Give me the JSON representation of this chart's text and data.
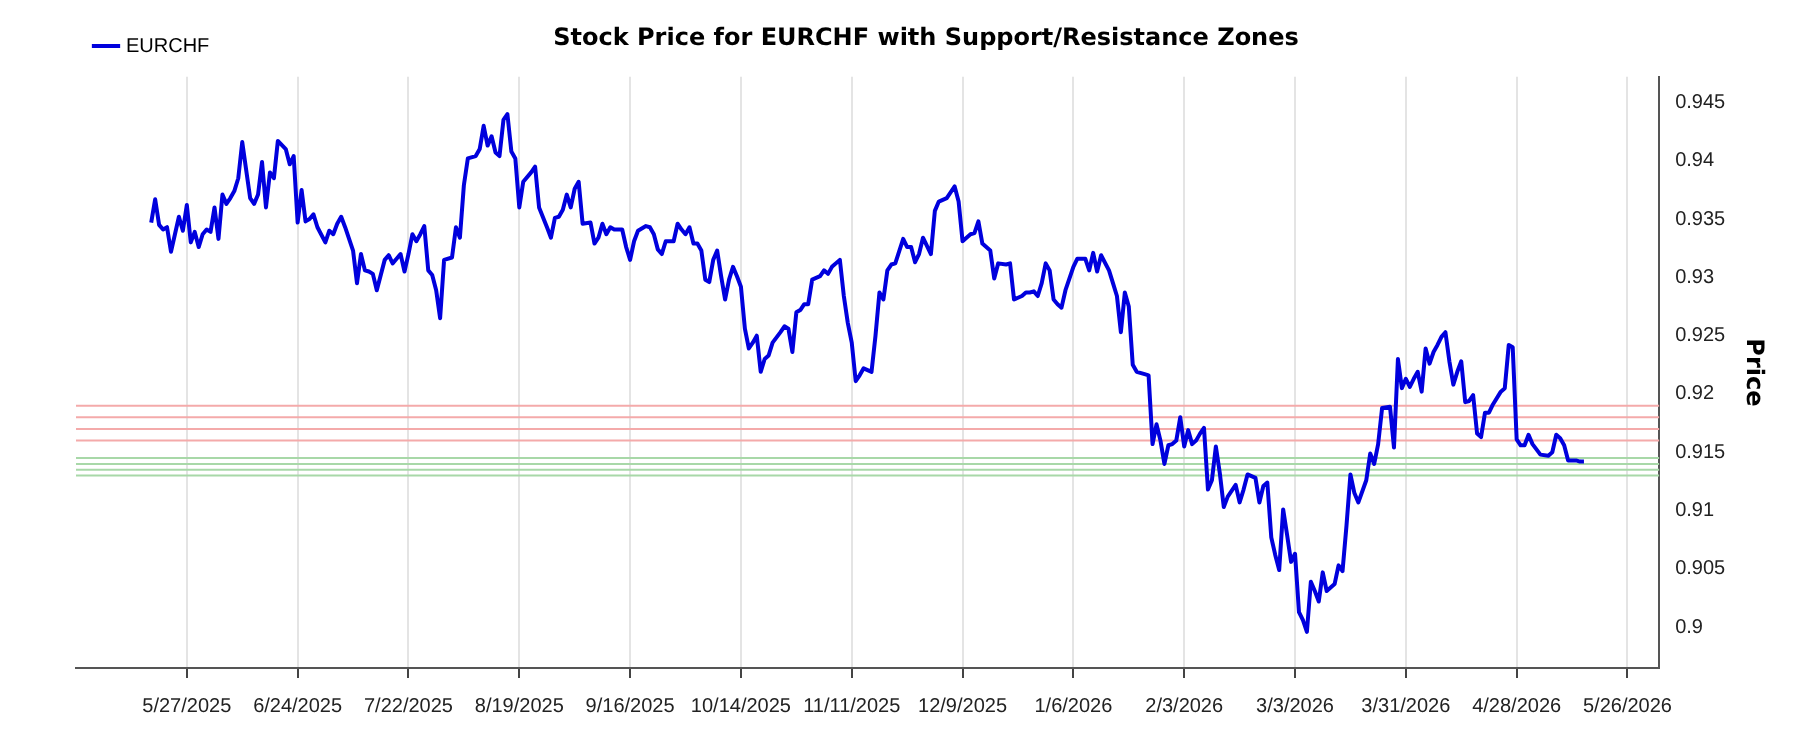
{
  "chart_data": {
    "type": "line",
    "title": "Stock Price for EURCHF with Support/Resistance Zones",
    "ylabel": "Price",
    "xlim": [
      "2025-04-29",
      "2026-06-03"
    ],
    "xticks": [
      {
        "value": "2025-05-27",
        "label": "5/27/2025"
      },
      {
        "value": "2025-06-24",
        "label": "6/24/2025"
      },
      {
        "value": "2025-07-22",
        "label": "7/22/2025"
      },
      {
        "value": "2025-08-19",
        "label": "8/19/2025"
      },
      {
        "value": "2025-09-16",
        "label": "9/16/2025"
      },
      {
        "value": "2025-10-14",
        "label": "10/14/2025"
      },
      {
        "value": "2025-11-11",
        "label": "11/11/2025"
      },
      {
        "value": "2025-12-09",
        "label": "12/9/2025"
      },
      {
        "value": "2026-01-06",
        "label": "1/6/2026"
      },
      {
        "value": "2026-02-03",
        "label": "2/3/2026"
      },
      {
        "value": "2026-03-03",
        "label": "3/3/2026"
      },
      {
        "value": "2026-03-31",
        "label": "3/31/2026"
      },
      {
        "value": "2026-04-28",
        "label": "4/28/2026"
      },
      {
        "value": "2026-05-26",
        "label": "5/26/2026"
      }
    ],
    "ylim": [
      0.8965,
      0.9472
    ],
    "yticks": [
      0.9,
      0.905,
      0.91,
      0.915,
      0.92,
      0.925,
      0.93,
      0.935,
      0.94,
      0.945
    ],
    "grid": "x",
    "legend": "top left",
    "ref_lines": [
      {
        "axis": "y",
        "value": 0.919,
        "color": "#f4aaaa"
      },
      {
        "axis": "y",
        "value": 0.918,
        "color": "#f4aaaa"
      },
      {
        "axis": "y",
        "value": 0.917,
        "color": "#f4aaaa"
      },
      {
        "axis": "y",
        "value": 0.916,
        "color": "#f4aaaa"
      },
      {
        "axis": "y",
        "value": 0.9145,
        "color": "#a8d8a8"
      },
      {
        "axis": "y",
        "value": 0.914,
        "color": "#a8d8a8"
      },
      {
        "axis": "y",
        "value": 0.9135,
        "color": "#a8d8a8"
      },
      {
        "axis": "y",
        "value": 0.913,
        "color": "#a8d8a8"
      }
    ],
    "series": [
      {
        "name": "EURCHF",
        "color": "#0000dd",
        "x": [
          "2025-05-18",
          "2025-05-19",
          "2025-05-20",
          "2025-05-21",
          "2025-05-22",
          "2025-05-23",
          "2025-05-24",
          "2025-05-25",
          "2025-05-26",
          "2025-05-27",
          "2025-05-28",
          "2025-05-29",
          "2025-05-30",
          "2025-05-31",
          "2025-06-01",
          "2025-06-02",
          "2025-06-03",
          "2025-06-04",
          "2025-06-05",
          "2025-06-06",
          "2025-06-07",
          "2025-06-08",
          "2025-06-09",
          "2025-06-10",
          "2025-06-12",
          "2025-06-13",
          "2025-06-14",
          "2025-06-15",
          "2025-06-16",
          "2025-06-17",
          "2025-06-18",
          "2025-06-19",
          "2025-06-21",
          "2025-06-22",
          "2025-06-23",
          "2025-06-24",
          "2025-06-25",
          "2025-06-26",
          "2025-06-27",
          "2025-06-28",
          "2025-06-29",
          "2025-07-01",
          "2025-07-02",
          "2025-07-03",
          "2025-07-04",
          "2025-07-05",
          "2025-07-06",
          "2025-07-08",
          "2025-07-09",
          "2025-07-10",
          "2025-07-11",
          "2025-07-12",
          "2025-07-13",
          "2025-07-14",
          "2025-07-16",
          "2025-07-17",
          "2025-07-18",
          "2025-07-19",
          "2025-07-20",
          "2025-07-21",
          "2025-07-22",
          "2025-07-23",
          "2025-07-24",
          "2025-07-25",
          "2025-07-26",
          "2025-07-27",
          "2025-07-28",
          "2025-07-29",
          "2025-07-30",
          "2025-07-31",
          "2025-08-02",
          "2025-08-03",
          "2025-08-04",
          "2025-08-05",
          "2025-08-06",
          "2025-08-08",
          "2025-08-09",
          "2025-08-10",
          "2025-08-11",
          "2025-08-12",
          "2025-08-13",
          "2025-08-14",
          "2025-08-15",
          "2025-08-16",
          "2025-08-17",
          "2025-08-18",
          "2025-08-19",
          "2025-08-20",
          "2025-08-22",
          "2025-08-23",
          "2025-08-24",
          "2025-08-26",
          "2025-08-27",
          "2025-08-28",
          "2025-08-29",
          "2025-08-30",
          "2025-08-31",
          "2025-09-01",
          "2025-09-02",
          "2025-09-03",
          "2025-09-04",
          "2025-09-06",
          "2025-09-07",
          "2025-09-08",
          "2025-09-09",
          "2025-09-10",
          "2025-09-11",
          "2025-09-12",
          "2025-09-14",
          "2025-09-15",
          "2025-09-16",
          "2025-09-17",
          "2025-09-18",
          "2025-09-20",
          "2025-09-21",
          "2025-09-22",
          "2025-09-23",
          "2025-09-24",
          "2025-09-25",
          "2025-09-27",
          "2025-09-28",
          "2025-09-29",
          "2025-09-30",
          "2025-10-01",
          "2025-10-02",
          "2025-10-03",
          "2025-10-04",
          "2025-10-05",
          "2025-10-06",
          "2025-10-07",
          "2025-10-08",
          "2025-10-09",
          "2025-10-10",
          "2025-10-11",
          "2025-10-12",
          "2025-10-13",
          "2025-10-14",
          "2025-10-15",
          "2025-10-16",
          "2025-10-17",
          "2025-10-18",
          "2025-10-19",
          "2025-10-20",
          "2025-10-21",
          "2025-10-22",
          "2025-10-24",
          "2025-10-25",
          "2025-10-26",
          "2025-10-27",
          "2025-10-28",
          "2025-10-29",
          "2025-10-30",
          "2025-10-31",
          "2025-11-01",
          "2025-11-03",
          "2025-11-04",
          "2025-11-05",
          "2025-11-06",
          "2025-11-08",
          "2025-11-09",
          "2025-11-10",
          "2025-11-11",
          "2025-11-12",
          "2025-11-13",
          "2025-11-14",
          "2025-11-16",
          "2025-11-17",
          "2025-11-18",
          "2025-11-19",
          "2025-11-20",
          "2025-11-21",
          "2025-11-22",
          "2025-11-24",
          "2025-11-25",
          "2025-11-26",
          "2025-11-27",
          "2025-11-28",
          "2025-11-29",
          "2025-12-01",
          "2025-12-02",
          "2025-12-03",
          "2025-12-05",
          "2025-12-07",
          "2025-12-08",
          "2025-12-09",
          "2025-12-11",
          "2025-12-12",
          "2025-12-13",
          "2025-12-14",
          "2025-12-16",
          "2025-12-17",
          "2025-12-18",
          "2025-12-20",
          "2025-12-21",
          "2025-12-22",
          "2025-12-24",
          "2025-12-25",
          "2025-12-26",
          "2025-12-27",
          "2025-12-28",
          "2025-12-29",
          "2025-12-30",
          "2025-12-31",
          "2026-01-01",
          "2026-01-02",
          "2026-01-03",
          "2026-01-04",
          "2026-01-06",
          "2026-01-07",
          "2026-01-09",
          "2026-01-10",
          "2026-01-11",
          "2026-01-12",
          "2026-01-13",
          "2026-01-15",
          "2026-01-16",
          "2026-01-17",
          "2026-01-18",
          "2026-01-19",
          "2026-01-20",
          "2026-01-21",
          "2026-01-22",
          "2026-01-24",
          "2026-01-25",
          "2026-01-26",
          "2026-01-27",
          "2026-01-28",
          "2026-01-29",
          "2026-01-30",
          "2026-01-31",
          "2026-02-01",
          "2026-02-02",
          "2026-02-03",
          "2026-02-04",
          "2026-02-05",
          "2026-02-06",
          "2026-02-07",
          "2026-02-08",
          "2026-02-09",
          "2026-02-10",
          "2026-02-11",
          "2026-02-12",
          "2026-02-13",
          "2026-02-14",
          "2026-02-16",
          "2026-02-17",
          "2026-02-18",
          "2026-02-19",
          "2026-02-21",
          "2026-02-22",
          "2026-02-23",
          "2026-02-24",
          "2026-02-25",
          "2026-02-26",
          "2026-02-27",
          "2026-02-28",
          "2026-03-01",
          "2026-03-02",
          "2026-03-03",
          "2026-03-04",
          "2026-03-05",
          "2026-03-06",
          "2026-03-07",
          "2026-03-08",
          "2026-03-09",
          "2026-03-10",
          "2026-03-11",
          "2026-03-12",
          "2026-03-13",
          "2026-03-14",
          "2026-03-15",
          "2026-03-16",
          "2026-03-17",
          "2026-03-18",
          "2026-03-19",
          "2026-03-21",
          "2026-03-22",
          "2026-03-23",
          "2026-03-24",
          "2026-03-25",
          "2026-03-27",
          "2026-03-28",
          "2026-03-29",
          "2026-03-30",
          "2026-03-31",
          "2026-04-01",
          "2026-04-02",
          "2026-04-03",
          "2026-04-04",
          "2026-04-05",
          "2026-04-06",
          "2026-04-07",
          "2026-04-08",
          "2026-04-09",
          "2026-04-10",
          "2026-04-11",
          "2026-04-12",
          "2026-04-13",
          "2026-04-14",
          "2026-04-15",
          "2026-04-16",
          "2026-04-17",
          "2026-04-18",
          "2026-04-19",
          "2026-04-20",
          "2026-04-21",
          "2026-04-22",
          "2026-04-24",
          "2026-04-25",
          "2026-04-26",
          "2026-04-27",
          "2026-04-28",
          "2026-04-29",
          "2026-04-30",
          "2026-05-01",
          "2026-05-02",
          "2026-05-04",
          "2026-05-06",
          "2026-05-07",
          "2026-05-08",
          "2026-05-09",
          "2026-05-10",
          "2026-05-11",
          "2026-05-13",
          "2026-05-14",
          "2026-05-15"
        ],
        "values": [
          0.9347,
          0.9367,
          0.9345,
          0.9341,
          0.9343,
          0.9322,
          0.9337,
          0.9352,
          0.934,
          0.9362,
          0.933,
          0.9339,
          0.9326,
          0.9337,
          0.9341,
          0.9339,
          0.936,
          0.9333,
          0.9371,
          0.9363,
          0.9368,
          0.9374,
          0.9385,
          0.9416,
          0.9368,
          0.9363,
          0.9371,
          0.9399,
          0.936,
          0.939,
          0.9385,
          0.9417,
          0.941,
          0.9397,
          0.9404,
          0.9347,
          0.9375,
          0.9348,
          0.935,
          0.9354,
          0.9343,
          0.933,
          0.934,
          0.9337,
          0.9346,
          0.9352,
          0.9343,
          0.9323,
          0.9295,
          0.932,
          0.9306,
          0.9305,
          0.9303,
          0.9289,
          0.9315,
          0.9319,
          0.9312,
          0.9316,
          0.932,
          0.9305,
          0.932,
          0.9337,
          0.9331,
          0.9337,
          0.9344,
          0.9306,
          0.9302,
          0.9289,
          0.9265,
          0.9315,
          0.9317,
          0.9343,
          0.9334,
          0.9379,
          0.9402,
          0.9404,
          0.941,
          0.943,
          0.9413,
          0.9421,
          0.9407,
          0.9404,
          0.9435,
          0.944,
          0.9408,
          0.9402,
          0.936,
          0.9382,
          0.939,
          0.9395,
          0.936,
          0.9343,
          0.9334,
          0.9351,
          0.9352,
          0.9358,
          0.9371,
          0.936,
          0.9376,
          0.9382,
          0.9346,
          0.9347,
          0.9329,
          0.9334,
          0.9346,
          0.9337,
          0.9343,
          0.9341,
          0.9341,
          0.9326,
          0.9315,
          0.9331,
          0.934,
          0.9344,
          0.9343,
          0.9337,
          0.9324,
          0.932,
          0.9331,
          0.9331,
          0.9346,
          0.9341,
          0.9337,
          0.9343,
          0.9329,
          0.9329,
          0.9323,
          0.9298,
          0.9296,
          0.9315,
          0.9323,
          0.9301,
          0.9281,
          0.9298,
          0.9309,
          0.9301,
          0.9292,
          0.9256,
          0.9239,
          0.9244,
          0.925,
          0.9219,
          0.923,
          0.9233,
          0.9244,
          0.9253,
          0.9258,
          0.9256,
          0.9236,
          0.927,
          0.9272,
          0.9277,
          0.9277,
          0.9298,
          0.9301,
          0.9306,
          0.9303,
          0.9309,
          0.9315,
          0.9284,
          0.9261,
          0.9244,
          0.9211,
          0.9216,
          0.9222,
          0.9219,
          0.925,
          0.9287,
          0.9281,
          0.9306,
          0.9311,
          0.9312,
          0.9333,
          0.9326,
          0.9326,
          0.9313,
          0.932,
          0.9334,
          0.932,
          0.9357,
          0.9365,
          0.9368,
          0.9378,
          0.9365,
          0.9331,
          0.9337,
          0.9338,
          0.9348,
          0.9329,
          0.9323,
          0.9299,
          0.9312,
          0.9311,
          0.9312,
          0.9281,
          0.9284,
          0.9287,
          0.9287,
          0.9288,
          0.9284,
          0.9295,
          0.9312,
          0.9306,
          0.9281,
          0.9277,
          0.9274,
          0.9289,
          0.9309,
          0.9316,
          0.9316,
          0.9306,
          0.9321,
          0.9305,
          0.9319,
          0.9306,
          0.9295,
          0.9284,
          0.9253,
          0.9287,
          0.9275,
          0.9225,
          0.9219,
          0.9217,
          0.9216,
          0.9157,
          0.9174,
          0.916,
          0.914,
          0.9156,
          0.9157,
          0.916,
          0.918,
          0.9155,
          0.9169,
          0.9157,
          0.916,
          0.9166,
          0.9171,
          0.9118,
          0.9126,
          0.9155,
          0.9132,
          0.9103,
          0.9112,
          0.9122,
          0.9107,
          0.9118,
          0.9131,
          0.9128,
          0.9107,
          0.9121,
          0.9124,
          0.9077,
          0.9062,
          0.9049,
          0.9101,
          0.9079,
          0.9056,
          0.9063,
          0.9013,
          0.9006,
          0.8996,
          0.9039,
          0.9031,
          0.9022,
          0.9047,
          0.9031,
          0.9034,
          0.9037,
          0.9053,
          0.9048,
          0.9087,
          0.9131,
          0.9115,
          0.9107,
          0.9126,
          0.9149,
          0.914,
          0.9157,
          0.9188,
          0.9189,
          0.9154,
          0.923,
          0.9205,
          0.9213,
          0.9206,
          0.9213,
          0.9219,
          0.9202,
          0.9239,
          0.9226,
          0.9236,
          0.9242,
          0.9249,
          0.9253,
          0.9228,
          0.9208,
          0.9219,
          0.9228,
          0.9193,
          0.9194,
          0.9199,
          0.9166,
          0.9163,
          0.9184,
          0.9184,
          0.9191,
          0.9202,
          0.9205,
          0.9242,
          0.924,
          0.9161,
          0.9156,
          0.9156,
          0.9165,
          0.9157,
          0.9148,
          0.9147,
          0.915,
          0.9165,
          0.9162,
          0.9156,
          0.9143,
          0.9143,
          0.9142,
          0.9142
        ]
      }
    ]
  }
}
